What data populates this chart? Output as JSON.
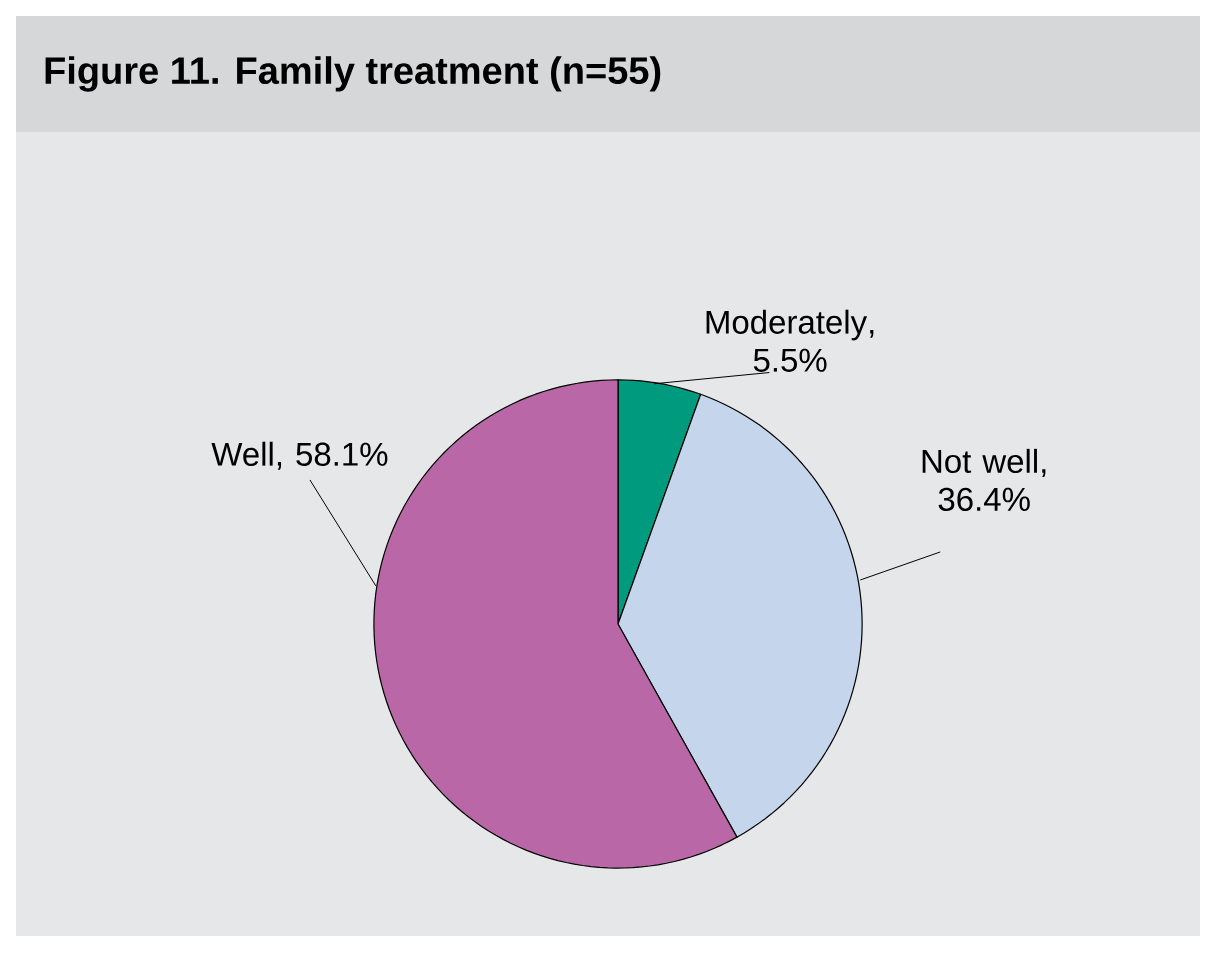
{
  "chart_data": {
    "type": "pie",
    "title": "Figure 11.   Family treatment (n=55)",
    "categories": [
      "Moderately",
      "Not well",
      "Well"
    ],
    "values": [
      5.5,
      36.4,
      58.1
    ],
    "value_labels": [
      ", 5.5%",
      ", 36.4%",
      ", 58.1%"
    ],
    "colors": [
      "#009a7e",
      "#c5d5ec",
      "#b967a6"
    ]
  }
}
